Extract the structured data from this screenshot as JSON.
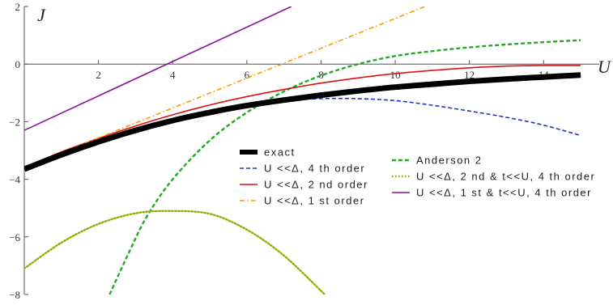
{
  "chart_data": {
    "type": "line",
    "title": "",
    "xlabel": "U",
    "ylabel": "J",
    "xlim": [
      0,
      15.5
    ],
    "ylim": [
      -8,
      2
    ],
    "x_ticks": [
      2,
      4,
      6,
      8,
      10,
      12,
      14
    ],
    "x_tick_labels": [
      "2",
      "4",
      "6",
      "8",
      "10",
      "12",
      "14"
    ],
    "y_ticks": [
      -8,
      -6,
      -4,
      -2,
      0,
      2
    ],
    "y_tick_labels": [
      "−8",
      "−6",
      "−4",
      "−2",
      "0",
      "2"
    ],
    "grid": false,
    "legend_placement": "center-bottom, two columns",
    "series": [
      {
        "name": "exact",
        "color": "#000000",
        "style": "solid",
        "width": "heavy",
        "x": [
          0,
          1,
          2,
          3,
          4,
          5,
          6,
          7,
          8,
          9,
          10,
          11,
          12,
          13,
          14,
          15
        ],
        "y": [
          -3.65,
          -3.15,
          -2.7,
          -2.3,
          -1.96,
          -1.68,
          -1.44,
          -1.25,
          -1.08,
          -0.93,
          -0.8,
          -0.7,
          -0.6,
          -0.52,
          -0.45,
          -0.38
        ]
      },
      {
        "name": "U <<Δ, 4 th order",
        "color": "#2233cc",
        "style": "dashed",
        "width": "thin",
        "x": [
          0,
          1,
          2,
          3,
          4,
          5,
          6,
          7,
          8,
          9,
          10,
          11,
          12,
          13,
          14,
          15
        ],
        "y": [
          -3.6,
          -3.1,
          -2.66,
          -2.24,
          -1.89,
          -1.6,
          -1.38,
          -1.25,
          -1.2,
          -1.2,
          -1.27,
          -1.43,
          -1.63,
          -1.85,
          -2.12,
          -2.48
        ]
      },
      {
        "name": "U <<Δ, 2 nd order",
        "color": "#dd1111",
        "style": "solid",
        "width": "thin",
        "x": [
          0,
          1,
          2,
          3,
          4,
          5,
          6,
          7,
          8,
          9,
          10,
          11,
          12,
          13,
          14,
          15
        ],
        "y": [
          -3.6,
          -3.05,
          -2.58,
          -2.15,
          -1.76,
          -1.42,
          -1.13,
          -0.88,
          -0.66,
          -0.48,
          -0.33,
          -0.22,
          -0.13,
          -0.07,
          -0.05,
          -0.05
        ]
      },
      {
        "name": "U <<Δ, 1 st order",
        "color": "#ff9900",
        "style": "dashdot",
        "width": "thin",
        "x": [
          0,
          10.8
        ],
        "y": [
          -3.6,
          2.0
        ]
      },
      {
        "name": "Anderson 2",
        "color": "#22aa22",
        "style": "dashed",
        "width": "medium",
        "x": [
          2.3,
          2.8,
          3.3,
          4,
          5,
          6,
          7,
          8,
          9,
          10,
          11,
          12,
          13,
          14,
          15
        ],
        "y": [
          -8.0,
          -6.6,
          -5.3,
          -4.0,
          -2.65,
          -1.68,
          -0.95,
          -0.4,
          0.0,
          0.28,
          0.45,
          0.58,
          0.68,
          0.76,
          0.83
        ]
      },
      {
        "name": "U <<Δ, 2 nd  &  t<<U, 4 th order",
        "color": "#99aa00",
        "style": "dotted",
        "width": "medium",
        "x": [
          0,
          1,
          2,
          3,
          3.9,
          5,
          6,
          7,
          8.1
        ],
        "y": [
          -7.1,
          -6.2,
          -5.55,
          -5.18,
          -5.1,
          -5.2,
          -5.75,
          -6.65,
          -8.0
        ]
      },
      {
        "name": "U <<Δ, 1 st  &  t<<U, 4 th order",
        "color": "#881199",
        "style": "solid",
        "width": "thin",
        "x": [
          0,
          7.2
        ],
        "y": [
          -2.3,
          2.0
        ]
      }
    ]
  }
}
